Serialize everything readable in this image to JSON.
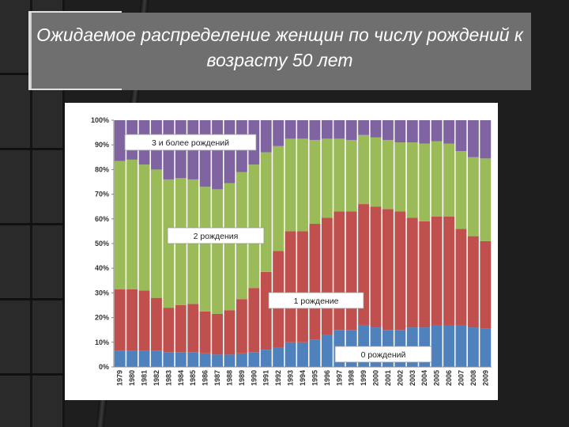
{
  "title": "Ожидаемое распределение женщин по числу рождений к возрасту 50 лет",
  "chart_data": {
    "type": "bar",
    "stacked": true,
    "percent": true,
    "categories": [
      "1979",
      "1980",
      "1981",
      "1982",
      "1983",
      "1984",
      "1985",
      "1986",
      "1987",
      "1988",
      "1989",
      "1990",
      "1991",
      "1992",
      "1993",
      "1994",
      "1995",
      "1996",
      "1997",
      "1998",
      "1999",
      "2000",
      "2001",
      "2002",
      "2003",
      "2004",
      "2005",
      "2006",
      "2007",
      "2008",
      "2009"
    ],
    "series": [
      {
        "name": "0 рождений",
        "color": "#4f81bd",
        "values": [
          6.5,
          6.5,
          6.5,
          6.5,
          6,
          6,
          6,
          5.5,
          5,
          5,
          5.5,
          6,
          7,
          8,
          10,
          10,
          11,
          13,
          15,
          15,
          17,
          16,
          15,
          15,
          16,
          16,
          17,
          17,
          17,
          16,
          15.5
        ]
      },
      {
        "name": "1 рождение",
        "color": "#c0504d",
        "values": [
          25,
          25,
          24.5,
          21.5,
          18,
          19,
          19.5,
          17,
          16.5,
          18,
          22,
          26,
          31.5,
          39,
          45,
          45,
          47,
          47.5,
          48,
          48,
          49,
          49,
          49,
          48,
          44.5,
          43,
          44,
          44,
          39,
          37,
          35.5
        ]
      },
      {
        "name": "2 рождения",
        "color": "#9bbb59",
        "values": [
          52,
          52.5,
          51,
          52,
          52,
          51.5,
          50.5,
          50.5,
          50.5,
          51.5,
          51.5,
          50,
          48.5,
          42.5,
          37.5,
          37.5,
          34,
          32,
          29.5,
          29,
          28,
          28,
          28,
          28,
          30.5,
          31.5,
          30.5,
          29.5,
          31.5,
          32,
          33.5
        ]
      },
      {
        "name": "3 и более рождений",
        "color": "#8064a2",
        "values": [
          16.5,
          16,
          18,
          20,
          24,
          23.5,
          24,
          27,
          28,
          25.5,
          21,
          18,
          13,
          10.5,
          7.5,
          7.5,
          8,
          7.5,
          7.5,
          8,
          6,
          7,
          8,
          9,
          9,
          9.5,
          8.5,
          9.5,
          12.5,
          15,
          15.5
        ]
      }
    ],
    "ylim": [
      0,
      100
    ],
    "yticks": [
      "0%",
      "10%",
      "20%",
      "30%",
      "40%",
      "50%",
      "60%",
      "70%",
      "80%",
      "90%",
      "100%"
    ],
    "annotations": [
      {
        "text": "3 и более рождений"
      },
      {
        "text": "2 рождения"
      },
      {
        "text": "1 рождение"
      },
      {
        "text": "0 рождений"
      }
    ]
  }
}
